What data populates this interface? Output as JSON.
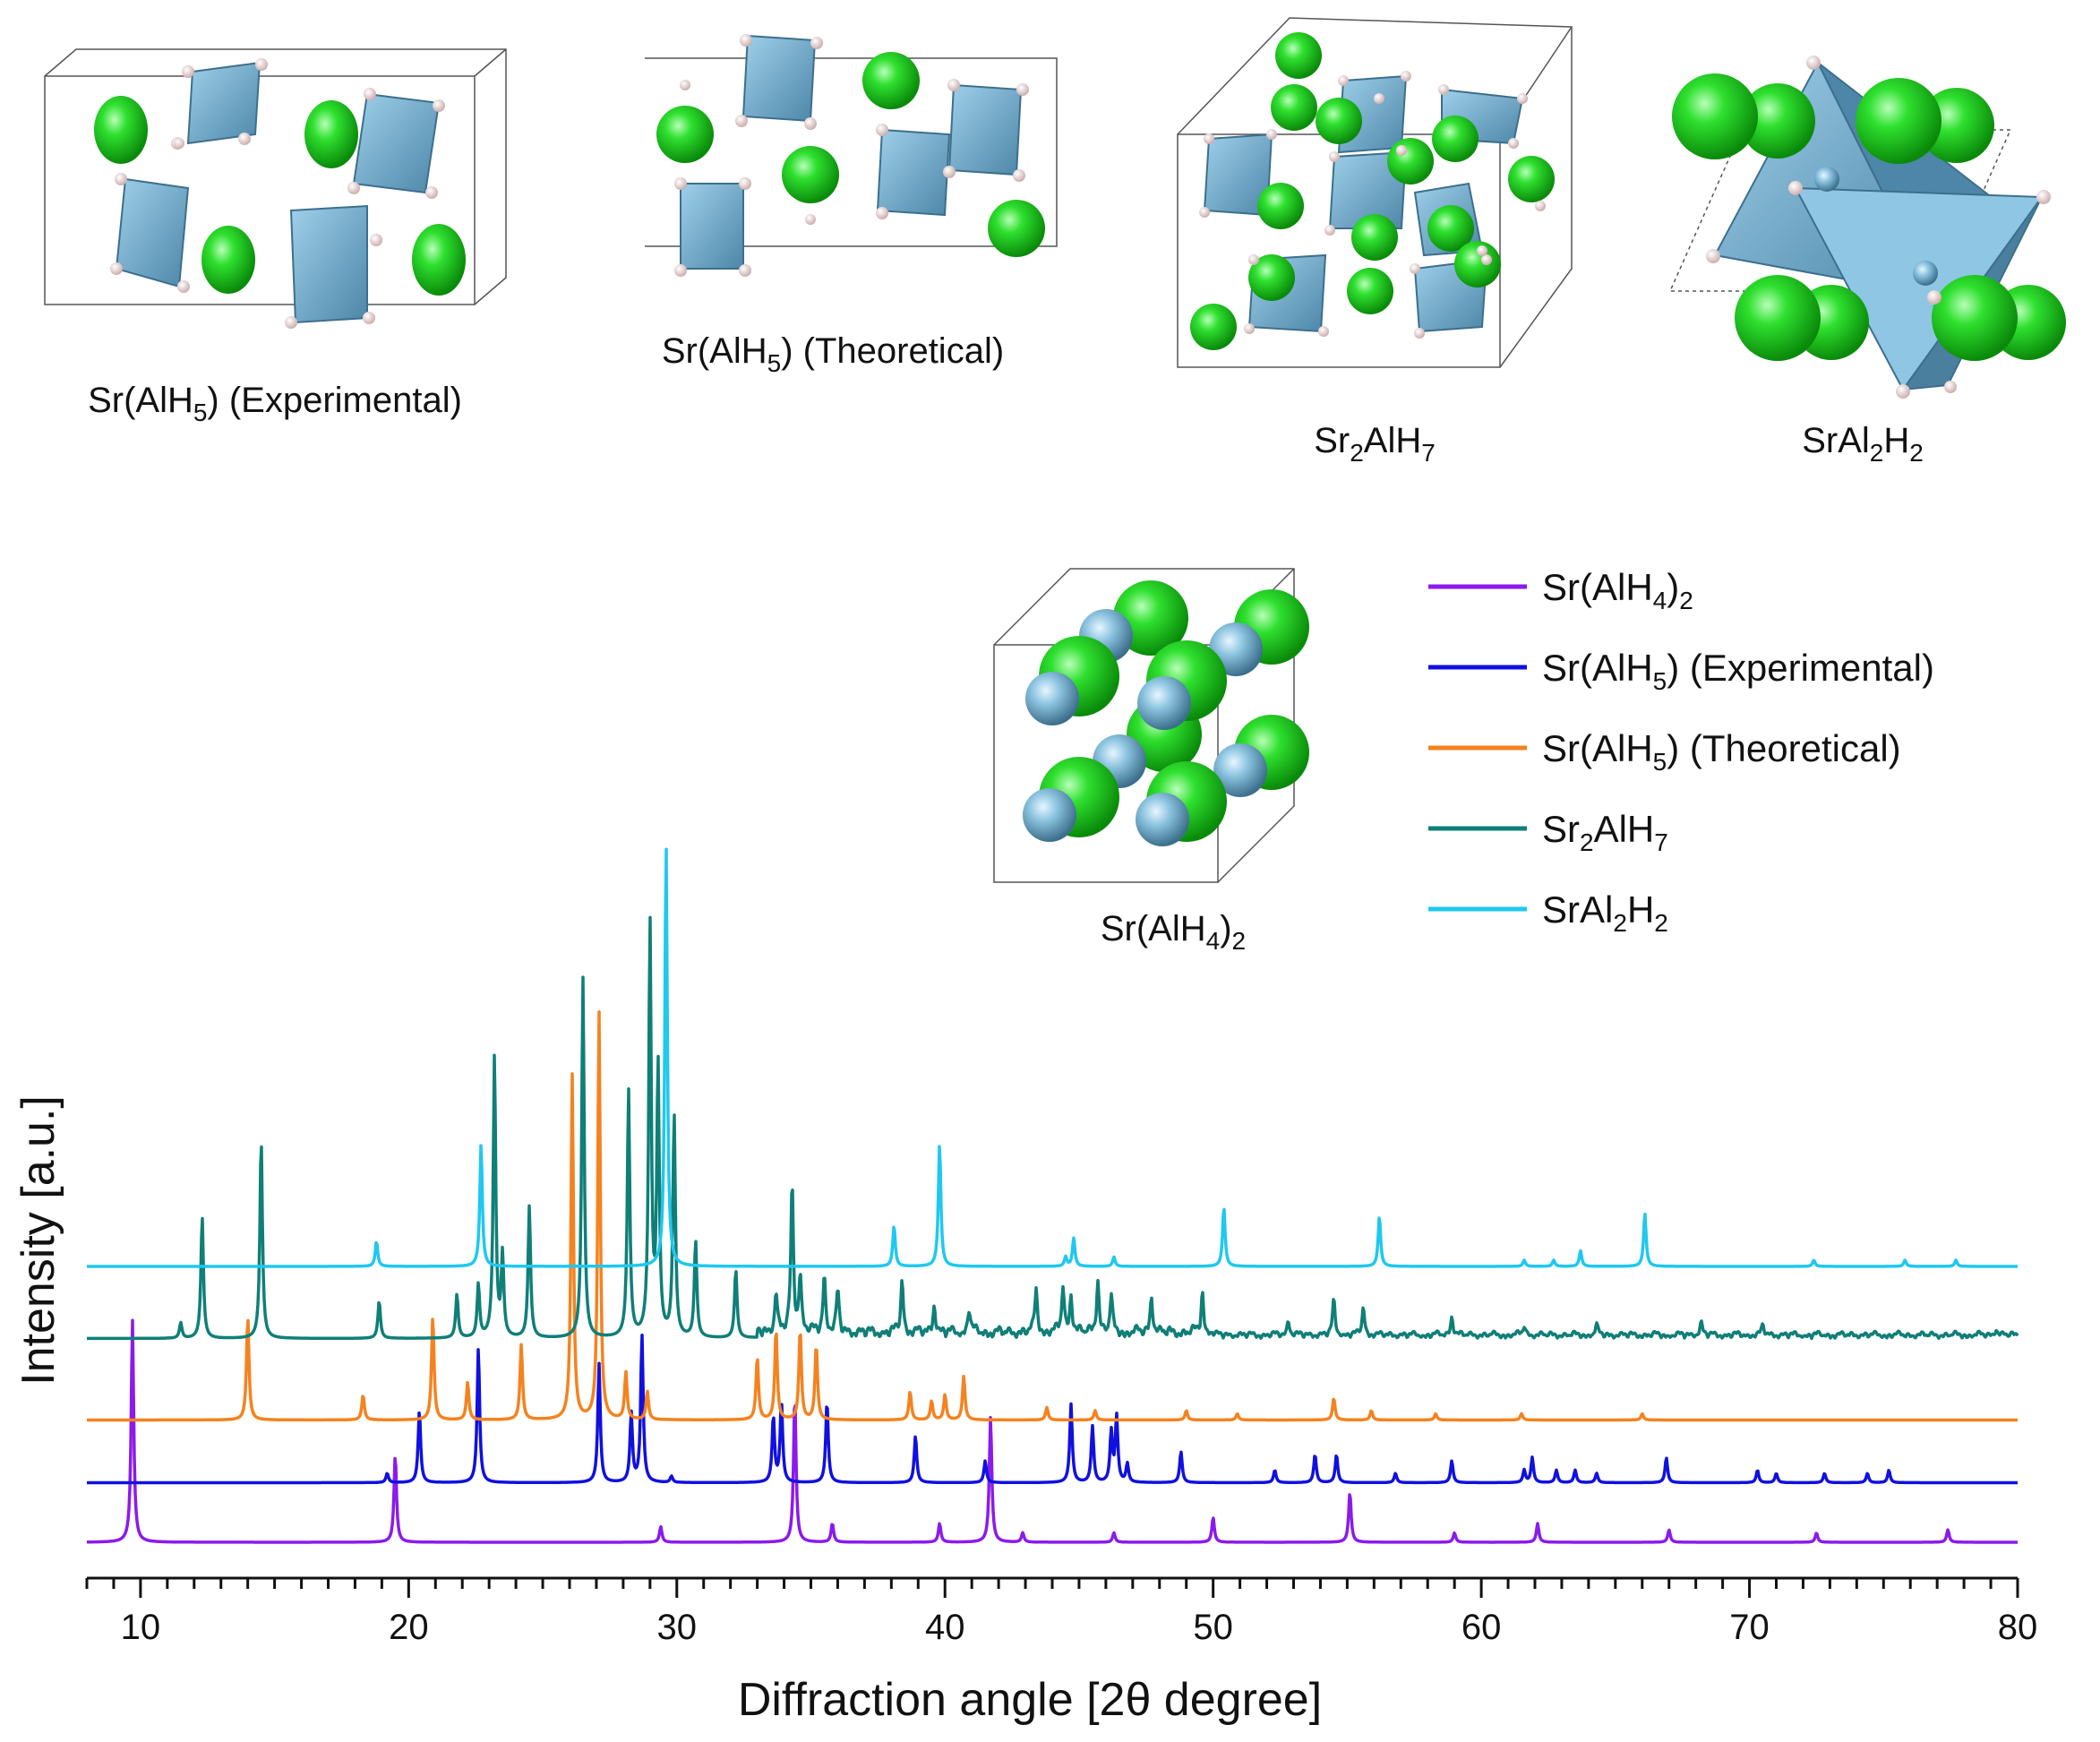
{
  "chart_data": {
    "type": "line",
    "title": "",
    "xlabel": "Diffraction angle [2θ degree]",
    "ylabel": "Intensity [a.u.]",
    "xlim": [
      8,
      80
    ],
    "xticks": [
      10,
      20,
      30,
      40,
      50,
      60,
      70,
      80
    ],
    "xtick_labels": [
      "10",
      "20",
      "30",
      "40",
      "50",
      "60",
      "70",
      "80"
    ],
    "grid": false,
    "legend": "top-right",
    "series": [
      {
        "name": "Sr(AlH4)2",
        "label_parts": [
          "Sr(AlH",
          "4",
          ")",
          "2"
        ],
        "color": "#8B1BEB",
        "baseline": 0,
        "peaks": [
          [
            9.7,
            7.1
          ],
          [
            19.5,
            2.8
          ],
          [
            29.4,
            0.5
          ],
          [
            34.4,
            4.7
          ],
          [
            35.8,
            0.6
          ],
          [
            39.8,
            0.6
          ],
          [
            41.7,
            4.0
          ],
          [
            42.9,
            0.3
          ],
          [
            46.3,
            0.3
          ],
          [
            50.0,
            0.8
          ],
          [
            55.1,
            1.6
          ],
          [
            59.0,
            0.3
          ],
          [
            62.1,
            0.6
          ],
          [
            67.0,
            0.4
          ],
          [
            72.5,
            0.3
          ],
          [
            77.4,
            0.4
          ]
        ]
      },
      {
        "name": "Sr(AlH5) (Experimental)",
        "label_parts": [
          "Sr(AlH",
          "5",
          ") (Experimental)"
        ],
        "color": "#1010E0",
        "baseline": 1.9,
        "peaks": [
          [
            19.2,
            0.3
          ],
          [
            20.4,
            2.3
          ],
          [
            22.6,
            4.3
          ],
          [
            27.1,
            3.8
          ],
          [
            28.3,
            2.2
          ],
          [
            28.7,
            4.7
          ],
          [
            29.8,
            0.2
          ],
          [
            33.6,
            2.1
          ],
          [
            33.9,
            2.6
          ],
          [
            35.6,
            2.6
          ],
          [
            38.9,
            1.5
          ],
          [
            41.5,
            0.7
          ],
          [
            44.7,
            2.5
          ],
          [
            45.5,
            1.8
          ],
          [
            46.2,
            1.6
          ],
          [
            46.4,
            2.1
          ],
          [
            46.8,
            0.6
          ],
          [
            48.8,
            1.0
          ],
          [
            52.3,
            0.4
          ],
          [
            53.8,
            0.9
          ],
          [
            54.6,
            0.9
          ],
          [
            56.8,
            0.3
          ],
          [
            58.9,
            0.7
          ],
          [
            61.6,
            0.4
          ],
          [
            61.9,
            0.8
          ],
          [
            62.8,
            0.4
          ],
          [
            63.5,
            0.4
          ],
          [
            64.3,
            0.3
          ],
          [
            66.9,
            0.8
          ],
          [
            70.3,
            0.4
          ],
          [
            71.0,
            0.3
          ],
          [
            72.8,
            0.3
          ],
          [
            74.4,
            0.3
          ],
          [
            75.2,
            0.4
          ]
        ]
      },
      {
        "name": "Sr(AlH5) (Theoretical)",
        "label_parts": [
          "Sr(AlH",
          "5",
          ") (Theoretical)"
        ],
        "color": "#F5821F",
        "baseline": 3.9,
        "peaks": [
          [
            14.0,
            3.3
          ],
          [
            18.3,
            0.8
          ],
          [
            20.9,
            3.3
          ],
          [
            22.2,
            1.2
          ],
          [
            24.2,
            2.4
          ],
          [
            26.1,
            11.0
          ],
          [
            27.1,
            13.0
          ],
          [
            28.1,
            1.5
          ],
          [
            28.9,
            0.9
          ],
          [
            33.0,
            2.0
          ],
          [
            33.7,
            2.9
          ],
          [
            34.6,
            2.9
          ],
          [
            35.2,
            2.4
          ],
          [
            38.7,
            0.9
          ],
          [
            39.5,
            0.6
          ],
          [
            40.0,
            0.8
          ],
          [
            40.7,
            1.4
          ],
          [
            43.8,
            0.4
          ],
          [
            45.6,
            0.3
          ],
          [
            49.0,
            0.3
          ],
          [
            50.9,
            0.2
          ],
          [
            54.5,
            0.7
          ],
          [
            55.9,
            0.3
          ],
          [
            58.3,
            0.2
          ],
          [
            61.5,
            0.2
          ],
          [
            66.0,
            0.2
          ]
        ]
      },
      {
        "name": "Sr2AlH7",
        "label_parts": [
          "Sr",
          "2",
          "AlH",
          "7"
        ],
        "color": "#0F7F78",
        "baseline": 6.5,
        "peaks": [
          [
            11.5,
            0.5
          ],
          [
            12.3,
            3.9
          ],
          [
            14.5,
            6.4
          ],
          [
            18.9,
            1.2
          ],
          [
            21.8,
            1.4
          ],
          [
            22.6,
            1.7
          ],
          [
            23.2,
            9.0
          ],
          [
            23.5,
            2.6
          ],
          [
            24.5,
            4.2
          ],
          [
            26.5,
            11.5
          ],
          [
            28.2,
            7.9
          ],
          [
            29.0,
            13.2
          ],
          [
            29.3,
            8.6
          ],
          [
            29.9,
            7.1
          ],
          [
            30.7,
            3.1
          ],
          [
            32.2,
            2.2
          ],
          [
            33.7,
            1.3
          ],
          [
            34.3,
            4.7
          ],
          [
            34.6,
            1.9
          ],
          [
            35.5,
            1.9
          ],
          [
            36.0,
            1.3
          ],
          [
            38.4,
            1.7
          ],
          [
            39.6,
            0.9
          ],
          [
            40.9,
            0.8
          ],
          [
            43.4,
            1.4
          ],
          [
            44.4,
            1.5
          ],
          [
            44.7,
            1.2
          ],
          [
            45.7,
            1.7
          ],
          [
            46.2,
            1.1
          ],
          [
            47.7,
            1.2
          ],
          [
            49.6,
            1.3
          ],
          [
            52.8,
            0.5
          ],
          [
            54.5,
            1.1
          ],
          [
            55.6,
            0.9
          ],
          [
            58.9,
            0.6
          ],
          [
            61.6,
            0.3
          ],
          [
            64.3,
            0.3
          ],
          [
            68.2,
            0.4
          ],
          [
            70.5,
            0.3
          ],
          [
            79.2,
            0.2
          ]
        ],
        "noise": true
      },
      {
        "name": "SrAl2H2",
        "label_parts": [
          "SrAl",
          "2",
          "H",
          "2"
        ],
        "color": "#1FC8F0",
        "baseline": 8.8,
        "peaks": [
          [
            18.8,
            0.8
          ],
          [
            22.7,
            3.9
          ],
          [
            29.6,
            13.5
          ],
          [
            38.1,
            1.3
          ],
          [
            39.8,
            3.9
          ],
          [
            44.5,
            0.3
          ],
          [
            44.8,
            0.9
          ],
          [
            46.3,
            0.3
          ],
          [
            50.4,
            1.9
          ],
          [
            56.2,
            1.6
          ],
          [
            61.6,
            0.2
          ],
          [
            62.7,
            0.2
          ],
          [
            63.7,
            0.5
          ],
          [
            66.1,
            1.7
          ],
          [
            72.4,
            0.2
          ],
          [
            75.8,
            0.2
          ],
          [
            77.7,
            0.2
          ]
        ]
      }
    ]
  },
  "structures": [
    {
      "name": "Sr(AlH5) (Experimental)",
      "label_parts": [
        "Sr(AlH",
        "5",
        ") (Experimental)"
      ]
    },
    {
      "name": "Sr(AlH5) (Theoretical)",
      "label_parts": [
        "Sr(AlH",
        "5",
        ") (Theoretical)"
      ]
    },
    {
      "name": "Sr2AlH7",
      "label_parts": [
        "Sr",
        "2",
        "AlH",
        "7"
      ]
    },
    {
      "name": "SrAl2H2",
      "label_parts": [
        "SrAl",
        "2",
        "H",
        "2"
      ]
    },
    {
      "name": "Sr(AlH4)2",
      "label_parts": [
        "Sr(AlH",
        "4",
        ")",
        "2"
      ]
    }
  ],
  "colors": {
    "sr_atom": "#1FD01F",
    "al_polyhedron": "#6FA9CC",
    "h_atom": "#F0D8D8",
    "cell_edge": "#555555"
  }
}
